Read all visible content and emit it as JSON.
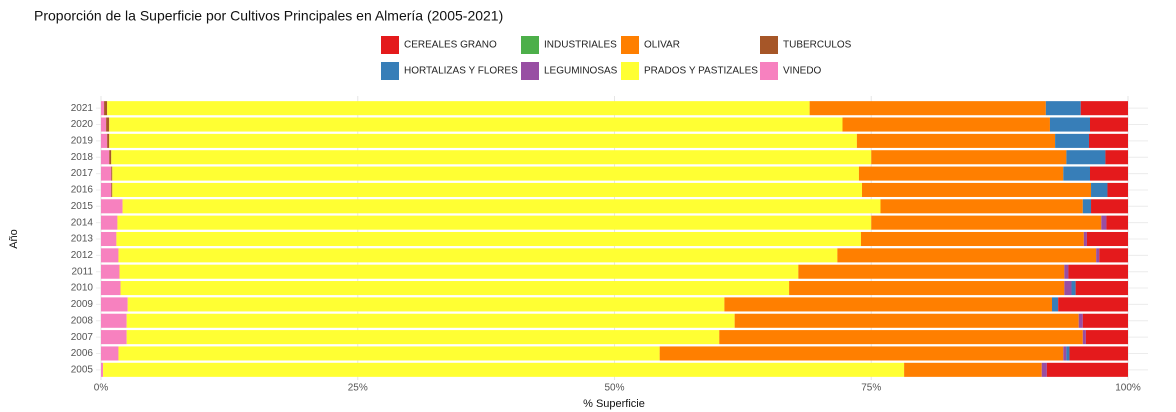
{
  "chart_data": {
    "type": "stacked-barh",
    "title": "Proporción de la Superficie por Cultivos Principales en Almería (2005-2021)",
    "x_label": "% Superficie",
    "y_label": "Año",
    "categories": [
      "2005",
      "2006",
      "2007",
      "2008",
      "2009",
      "2010",
      "2011",
      "2012",
      "2013",
      "2014",
      "2015",
      "2016",
      "2017",
      "2018",
      "2019",
      "2020",
      "2021"
    ],
    "series": [
      {
        "name": "CEREALES GRANO",
        "color": "#E41A1C",
        "values": [
          7.9,
          5.7,
          4.1,
          4.4,
          6.8,
          5.1,
          5.8,
          2.8,
          4.0,
          2.1,
          3.6,
          2.0,
          3.7,
          2.2,
          3.8,
          3.7,
          4.6
        ]
      },
      {
        "name": "HORTALIZAS Y FLORES",
        "color": "#377EB8",
        "values": [
          0,
          0.3,
          0,
          0,
          0.6,
          0.4,
          0,
          0,
          0,
          0,
          0.8,
          1.6,
          2.6,
          3.8,
          3.3,
          3.9,
          3.4
        ]
      },
      {
        "name": "INDUSTRIALES",
        "color": "#4DAF4A",
        "values": [
          0,
          0,
          0,
          0,
          0,
          0,
          0,
          0,
          0,
          0,
          0,
          0,
          0,
          0,
          0,
          0,
          0
        ]
      },
      {
        "name": "LEGUMINOSAS",
        "color": "#984EA3",
        "values": [
          0.5,
          0.3,
          0.3,
          0.4,
          0,
          0.7,
          0.4,
          0.3,
          0.3,
          0.5,
          0,
          0,
          0,
          0,
          0,
          0,
          0
        ]
      },
      {
        "name": "OLIVAR",
        "color": "#FF7F00",
        "values": [
          13.4,
          39.3,
          35.4,
          33.5,
          31.9,
          26.8,
          25.9,
          25.2,
          21.7,
          22.4,
          19.7,
          22.3,
          19.9,
          19.0,
          19.3,
          20.2,
          23.0
        ]
      },
      {
        "name": "PRADOS Y PASTIZALES",
        "color": "#FFFF33",
        "values": [
          78.0,
          52.7,
          57.7,
          59.2,
          58.1,
          65.1,
          66.1,
          70.0,
          72.5,
          73.4,
          73.8,
          73.0,
          72.7,
          74.0,
          72.8,
          71.4,
          68.4
        ]
      },
      {
        "name": "TUBERCULOS",
        "color": "#A65628",
        "values": [
          0,
          0,
          0,
          0,
          0,
          0,
          0,
          0,
          0,
          0,
          0,
          0.1,
          0.1,
          0.2,
          0.2,
          0.3,
          0.3
        ]
      },
      {
        "name": "VINEDO",
        "color": "#F781BF",
        "values": [
          0.2,
          1.7,
          2.5,
          2.5,
          2.6,
          1.9,
          1.8,
          1.7,
          1.5,
          1.6,
          2.1,
          1.0,
          1.0,
          0.8,
          0.6,
          0.5,
          0.3
        ]
      }
    ],
    "xlim": [
      0,
      100
    ],
    "xticks": [
      {
        "value": 0,
        "label": "0%"
      },
      {
        "value": 25,
        "label": "25%"
      },
      {
        "value": 50,
        "label": "50%"
      },
      {
        "value": 75,
        "label": "75%"
      },
      {
        "value": 100,
        "label": "100%"
      }
    ],
    "grid": true,
    "legend": "top"
  }
}
